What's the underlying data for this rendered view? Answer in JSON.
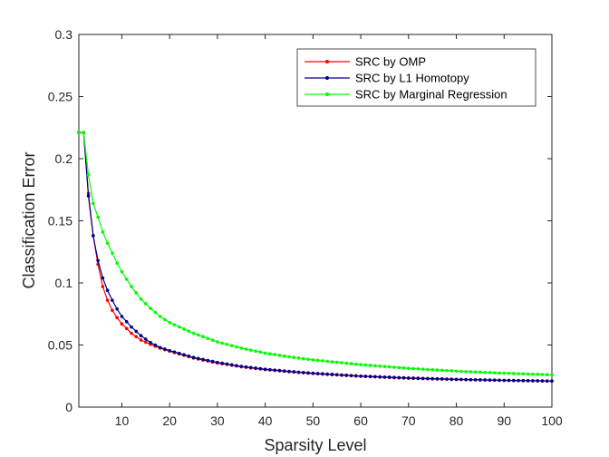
{
  "chart_data": {
    "type": "line",
    "xlabel": "Sparsity Level",
    "ylabel": "Classification Error",
    "xlim": [
      1,
      100
    ],
    "ylim": [
      0,
      0.3
    ],
    "xticks": [
      10,
      20,
      30,
      40,
      50,
      60,
      70,
      80,
      90,
      100
    ],
    "yticks": [
      0,
      0.05,
      0.1,
      0.15,
      0.2,
      0.25,
      0.3
    ],
    "ytick_labels": [
      "0",
      "0.05",
      "0.1",
      "0.15",
      "0.2",
      "0.25",
      "0.3"
    ],
    "legend_position": "top-right",
    "grid": false,
    "series": [
      {
        "name": "SRC by OMP",
        "color": "#ff0000",
        "x": [
          1,
          2,
          3,
          4,
          5,
          6,
          7,
          8,
          9,
          10,
          12,
          14,
          16,
          18,
          20,
          25,
          30,
          35,
          40,
          45,
          50,
          60,
          70,
          80,
          90,
          100
        ],
        "y": [
          0.221,
          0.221,
          0.172,
          0.138,
          0.115,
          0.097,
          0.086,
          0.078,
          0.072,
          0.067,
          0.0595,
          0.054,
          0.0505,
          0.0475,
          0.045,
          0.0395,
          0.0355,
          0.0325,
          0.0302,
          0.0285,
          0.027,
          0.0248,
          0.0232,
          0.0222,
          0.0215,
          0.021
        ]
      },
      {
        "name": "SRC by L1 Homotopy",
        "color": "#00008b",
        "x": [
          1,
          2,
          3,
          4,
          5,
          6,
          7,
          8,
          9,
          10,
          12,
          14,
          16,
          18,
          20,
          25,
          30,
          35,
          40,
          45,
          50,
          60,
          70,
          80,
          90,
          100
        ],
        "y": [
          0.221,
          0.221,
          0.17,
          0.138,
          0.118,
          0.104,
          0.094,
          0.086,
          0.079,
          0.073,
          0.0645,
          0.0575,
          0.052,
          0.048,
          0.0455,
          0.04,
          0.036,
          0.0328,
          0.0305,
          0.0288,
          0.0273,
          0.025,
          0.0235,
          0.0224,
          0.0216,
          0.021
        ]
      },
      {
        "name": "SRC by Marginal Regression",
        "color": "#00ff00",
        "x": [
          1,
          2,
          3,
          4,
          5,
          6,
          7,
          8,
          9,
          10,
          12,
          14,
          16,
          18,
          20,
          25,
          30,
          35,
          40,
          45,
          50,
          60,
          70,
          80,
          90,
          100
        ],
        "y": [
          0.221,
          0.221,
          0.187,
          0.164,
          0.153,
          0.141,
          0.132,
          0.124,
          0.116,
          0.109,
          0.097,
          0.087,
          0.0795,
          0.073,
          0.068,
          0.0595,
          0.0525,
          0.0475,
          0.0435,
          0.0405,
          0.038,
          0.0342,
          0.0312,
          0.029,
          0.0273,
          0.026
        ]
      }
    ]
  }
}
